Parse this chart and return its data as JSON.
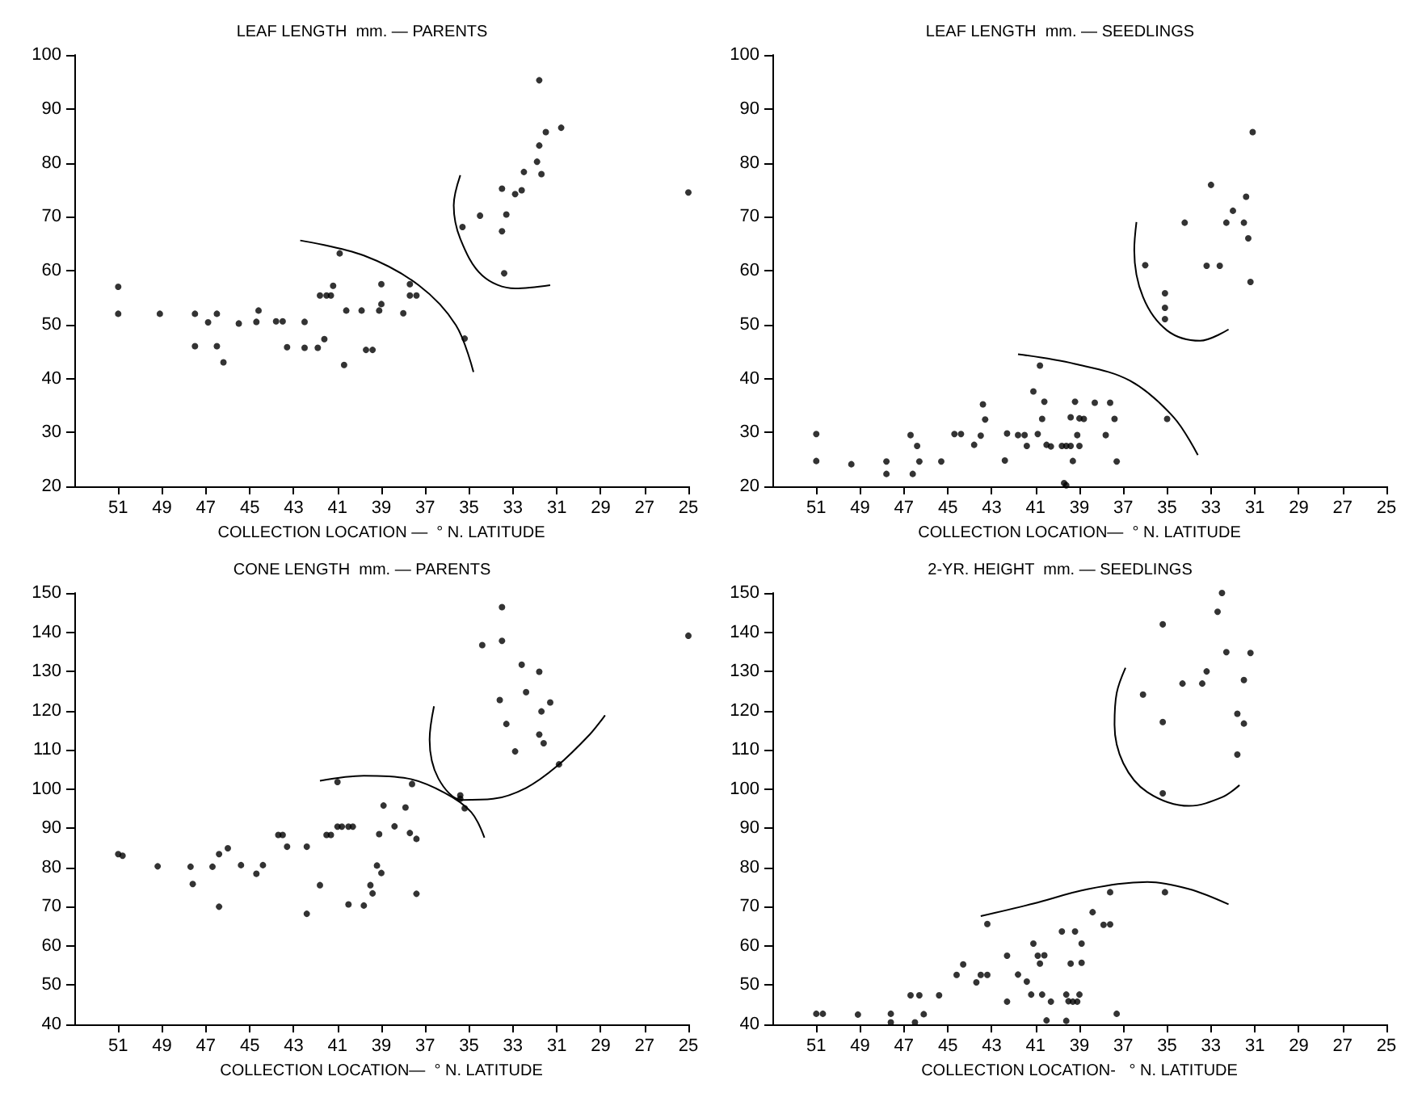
{
  "chart_data": [
    {
      "type": "scatter",
      "title": "LEAF LENGTH  mm. — PARENTS",
      "xlabel": "COLLECTION LOCATION —  ° N. LATITUDE",
      "xlim": [
        53,
        25
      ],
      "xticks": [
        51,
        49,
        47,
        45,
        43,
        41,
        39,
        37,
        35,
        33,
        31,
        29,
        27,
        25
      ],
      "ylim": [
        20,
        100
      ],
      "yticks": [
        20,
        30,
        40,
        50,
        60,
        70,
        80,
        90,
        100
      ],
      "series": [
        {
          "color": "#000000",
          "marker": "circle",
          "x": [
            51,
            51,
            49.1,
            47.5,
            47.5,
            46.9,
            46.5,
            46.5,
            46.2,
            45.5,
            44.7,
            44.6,
            43.8,
            43.5,
            43.3,
            42.5,
            42.5,
            41.9,
            41.8,
            41.6,
            41.5,
            41.3,
            41.2,
            40.9,
            40.7,
            40.6,
            39.9,
            39.7,
            39.4,
            39.1,
            39,
            39,
            38,
            37.7,
            37.7,
            37.4,
            35.2,
            35.3,
            34.5,
            33.5,
            33.5,
            33.4,
            33.3,
            32.9,
            32.6,
            32.5,
            31.9,
            31.8,
            31.8,
            31.7,
            31.5,
            30.8,
            25
          ],
          "values": [
            57,
            52,
            52,
            52,
            46,
            50.4,
            52,
            46,
            43,
            50.2,
            50.5,
            52.6,
            50.6,
            50.6,
            45.8,
            50.5,
            45.7,
            45.7,
            55.4,
            47.3,
            55.4,
            55.4,
            57.2,
            63.2,
            42.5,
            52.6,
            52.6,
            45.3,
            45.3,
            52.6,
            57.5,
            53.8,
            52.1,
            57.5,
            55.4,
            55.4,
            47.4,
            68.1,
            70.2,
            75.2,
            67.3,
            59.5,
            70.4,
            74.2,
            74.9,
            78.3,
            80.2,
            83.2,
            95.3,
            77.9,
            85.7,
            86.5,
            74.5
          ]
        },
        {
          "type": "line",
          "marker": "none",
          "color": "#000000",
          "x": [
            42.7,
            39.8,
            37.3,
            35.6,
            34.8
          ],
          "values": [
            65.6,
            62.8,
            57.3,
            49.9,
            41.2
          ]
        },
        {
          "type": "line",
          "marker": "none",
          "color": "#000000",
          "x": [
            35.4,
            35.7,
            35.4,
            34.4,
            32.9,
            31.3
          ],
          "values": [
            77.7,
            72.1,
            65.9,
            59.1,
            56.7,
            57.3
          ]
        }
      ]
    },
    {
      "type": "scatter",
      "title": "LEAF LENGTH  mm. — SEEDLINGS",
      "xlabel": "COLLECTION LOCATION—  ° N. LATITUDE",
      "xlim": [
        53,
        25
      ],
      "xticks": [
        51,
        49,
        47,
        45,
        43,
        41,
        39,
        37,
        35,
        33,
        31,
        29,
        27,
        25
      ],
      "ylim": [
        20,
        100
      ],
      "yticks": [
        20,
        30,
        40,
        50,
        60,
        70,
        80,
        90,
        100
      ],
      "series": [
        {
          "color": "#000000",
          "marker": "circle",
          "x": [
            51,
            51,
            49.4,
            47.8,
            47.8,
            46.7,
            46.6,
            46.4,
            46.3,
            45.3,
            44.7,
            44.4,
            43.8,
            43.5,
            43.4,
            43.3,
            42.4,
            42.3,
            41.8,
            41.5,
            41.4,
            41.1,
            40.9,
            40.8,
            40.7,
            40.6,
            40.5,
            40.3,
            39.8,
            39.7,
            39.6,
            39.6,
            39.4,
            39.4,
            39.3,
            39.2,
            39.1,
            39,
            39,
            38.8,
            38.3,
            37.8,
            37.6,
            37.4,
            37.3,
            36,
            35,
            35.1,
            35.1,
            35.1,
            34.2,
            33,
            33.2,
            32.6,
            32.3,
            32,
            31.5,
            31.4,
            31.3,
            31.2,
            31.1
          ],
          "values": [
            29.7,
            24.7,
            24.1,
            24.6,
            22.3,
            29.5,
            22.3,
            27.5,
            24.6,
            24.6,
            29.7,
            29.7,
            27.7,
            29.4,
            35.2,
            32.4,
            24.8,
            29.8,
            29.5,
            29.5,
            27.5,
            37.6,
            29.7,
            42.4,
            32.5,
            35.7,
            27.7,
            27.4,
            27.5,
            20.6,
            20.2,
            27.5,
            27.5,
            32.8,
            24.7,
            35.7,
            29.5,
            27.5,
            32.6,
            32.5,
            35.5,
            29.5,
            35.5,
            32.5,
            24.6,
            61,
            32.5,
            55.8,
            53.1,
            51,
            68.9,
            75.9,
            60.9,
            60.9,
            68.9,
            71.1,
            68.9,
            73.7,
            66,
            57.9,
            85.7
          ]
        },
        {
          "type": "line",
          "marker": "none",
          "color": "#000000",
          "x": [
            41.8,
            39.2,
            36.7,
            34.7,
            33.6
          ],
          "values": [
            44.5,
            42.7,
            39.6,
            32.8,
            25.8
          ]
        },
        {
          "type": "line",
          "marker": "none",
          "color": "#000000",
          "x": [
            36.4,
            36.5,
            36.1,
            35,
            33.5,
            32.2
          ],
          "values": [
            69,
            63.8,
            55.1,
            48.9,
            47,
            49.1
          ]
        }
      ]
    },
    {
      "type": "scatter",
      "title": "CONE LENGTH  mm. — PARENTS",
      "xlabel": "COLLECTION LOCATION—  ° N. LATITUDE",
      "xlim": [
        53,
        25
      ],
      "xticks": [
        51,
        49,
        47,
        45,
        43,
        41,
        39,
        37,
        35,
        33,
        31,
        29,
        27,
        25
      ],
      "ylim": [
        40,
        150
      ],
      "yticks": [
        40,
        50,
        60,
        70,
        80,
        90,
        100,
        110,
        120,
        130,
        140,
        150
      ],
      "series": [
        {
          "color": "#000000",
          "marker": "circle",
          "x": [
            51,
            50.8,
            49.2,
            47.7,
            47.6,
            46.7,
            46.4,
            46.4,
            46,
            45.4,
            44.7,
            44.4,
            43.7,
            43.5,
            43.3,
            42.4,
            42.4,
            41.8,
            41.5,
            41.3,
            41,
            41,
            40.8,
            40.5,
            40.3,
            40.5,
            39.8,
            39.5,
            39.4,
            39.2,
            39.1,
            39,
            38.9,
            38.4,
            37.9,
            37.7,
            37.6,
            37.4,
            37.4,
            35.4,
            35.4,
            35.2,
            34.4,
            33.5,
            33.5,
            33.6,
            33.3,
            32.9,
            32.6,
            32.4,
            31.8,
            31.8,
            31.7,
            31.6,
            31.3,
            30.9,
            25
          ],
          "values": [
            83.4,
            83,
            80.3,
            80.2,
            75.8,
            80.2,
            83.4,
            70,
            84.9,
            80.6,
            78.4,
            80.6,
            88.3,
            88.3,
            85.3,
            85.3,
            68.2,
            75.5,
            88.3,
            88.3,
            101.8,
            90.4,
            90.4,
            90.4,
            90.4,
            70.6,
            70.3,
            75.5,
            73.4,
            80.5,
            88.5,
            78.6,
            95.8,
            90.5,
            95.3,
            88.8,
            101.3,
            87.3,
            73.3,
            98.4,
            97.5,
            95.1,
            136.7,
            146.4,
            137.8,
            122.7,
            116.6,
            109.6,
            131.7,
            124.7,
            129.9,
            113.9,
            119.8,
            111.7,
            122.1,
            106.3,
            139.1
          ]
        },
        {
          "type": "line",
          "marker": "none",
          "color": "#000000",
          "x": [
            41.8,
            39.8,
            37.8,
            36.1,
            34.9,
            34.3
          ],
          "values": [
            102.1,
            103.4,
            102.7,
            99,
            94.1,
            87.6
          ]
        },
        {
          "type": "line",
          "marker": "none",
          "color": "#000000",
          "x": [
            36.6,
            36.8,
            36.4,
            35.3,
            33.9,
            32.4,
            31,
            29.5,
            28.8
          ],
          "values": [
            121.1,
            112.6,
            102.7,
            97.2,
            97.5,
            100.3,
            105.8,
            113.9,
            118.8
          ]
        }
      ]
    },
    {
      "type": "scatter",
      "title": "2-YR. HEIGHT  mm. — SEEDLINGS",
      "xlabel": "COLLECTION LOCATION-   ° N. LATITUDE",
      "xlim": [
        53,
        25
      ],
      "xticks": [
        51,
        49,
        47,
        45,
        43,
        41,
        39,
        37,
        35,
        33,
        31,
        29,
        27,
        25
      ],
      "ylim": [
        40,
        150
      ],
      "yticks": [
        40,
        50,
        60,
        70,
        80,
        90,
        100,
        110,
        120,
        130,
        140,
        150
      ],
      "series": [
        {
          "color": "#000000",
          "marker": "circle",
          "x": [
            51,
            50.7,
            49.1,
            47.6,
            47.6,
            46.7,
            46.5,
            46.3,
            46.1,
            45.4,
            44.6,
            44.3,
            43.7,
            43.5,
            43.2,
            43.2,
            42.3,
            42.3,
            41.8,
            41.4,
            41.2,
            41.1,
            40.9,
            40.8,
            40.6,
            40.7,
            40.5,
            40.3,
            39.8,
            39.6,
            39.5,
            39.4,
            39.3,
            39.2,
            39.1,
            39,
            38.9,
            38.9,
            39.6,
            38.4,
            37.9,
            37.6,
            37.6,
            37.3,
            36.1,
            35.2,
            35.2,
            35.2,
            35.1,
            34.3,
            33.4,
            33.2,
            32.7,
            32.5,
            32.3,
            31.8,
            31.8,
            31.5,
            31.5,
            31.2
          ],
          "values": [
            42.7,
            42.7,
            42.5,
            42.7,
            40.5,
            47.4,
            40.5,
            47.4,
            42.6,
            47.4,
            52.6,
            55.3,
            50.7,
            52.6,
            52.6,
            65.6,
            57.5,
            45.8,
            52.7,
            50.9,
            47.6,
            60.6,
            57.5,
            55.5,
            57.6,
            47.6,
            41,
            45.8,
            63.7,
            47.6,
            45.9,
            55.5,
            45.8,
            63.7,
            45.8,
            47.6,
            55.7,
            60.6,
            40.9,
            68.6,
            65.4,
            65.5,
            73.7,
            42.7,
            124.1,
            142,
            117.1,
            98.9,
            73.7,
            126.9,
            126.9,
            130,
            145.2,
            150,
            134.9,
            119.2,
            108.8,
            127.8,
            116.7,
            134.7
          ]
        },
        {
          "type": "line",
          "marker": "none",
          "color": "#000000",
          "x": [
            43.5,
            41.1,
            38.6,
            35.9,
            34,
            32.2
          ],
          "values": [
            67.6,
            70.8,
            74.5,
            76.3,
            74.5,
            70.6
          ]
        },
        {
          "type": "line",
          "marker": "none",
          "color": "#000000",
          "x": [
            36.9,
            37.3,
            37.4,
            37,
            35.9,
            34,
            32.5,
            31.7
          ],
          "values": [
            130.9,
            124.5,
            116.4,
            106.6,
            99.2,
            95.7,
            97.9,
            101
          ]
        }
      ]
    }
  ]
}
